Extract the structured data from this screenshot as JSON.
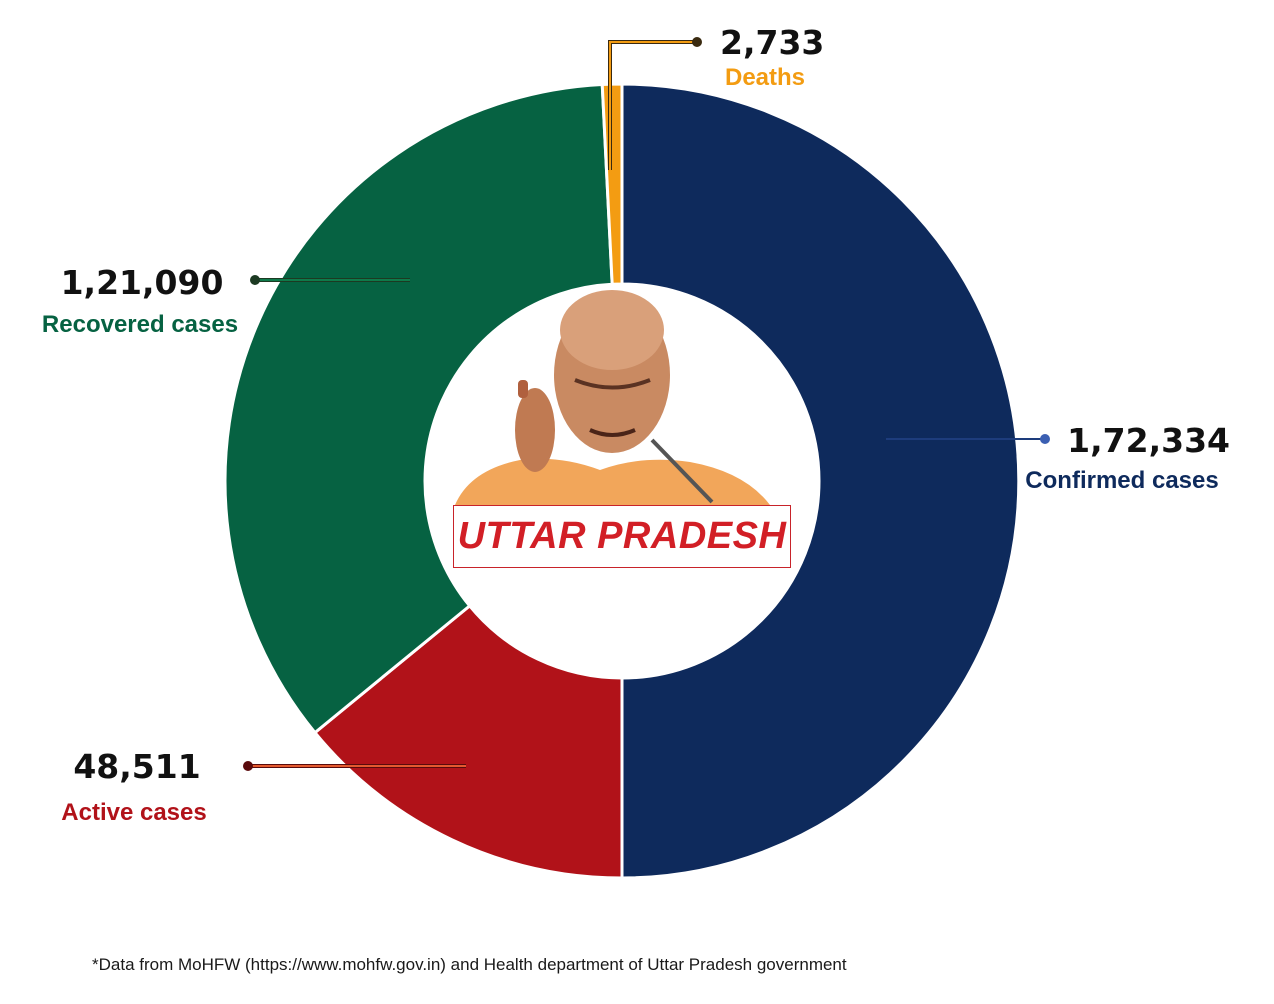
{
  "chart_data": {
    "type": "pie",
    "donut": true,
    "slices": [
      {
        "key": "confirmed",
        "label": "Confirmed cases",
        "value": 172334,
        "display": "1,72,334",
        "color": "#0e2a5c",
        "label_color": "#0e2a5c"
      },
      {
        "key": "active",
        "label": "Active cases",
        "value": 48511,
        "display": "48,511",
        "color": "#b11219",
        "label_color": "#b11219"
      },
      {
        "key": "recovered",
        "label": "Recovered cases",
        "value": 121090,
        "display": "1,21,090",
        "color": "#066242",
        "label_color": "#066242"
      },
      {
        "key": "deaths",
        "label": "Deaths",
        "value": 2733,
        "display": "2,733",
        "color": "#f39c12",
        "label_color": "#f39c12"
      }
    ],
    "center_label": "UTTAR PRADESH",
    "center_label_color": "#d21f26"
  },
  "footnote": "*Data from MoHFW (https://www.mohfw.gov.in) and Health department of Uttar Pradesh government"
}
